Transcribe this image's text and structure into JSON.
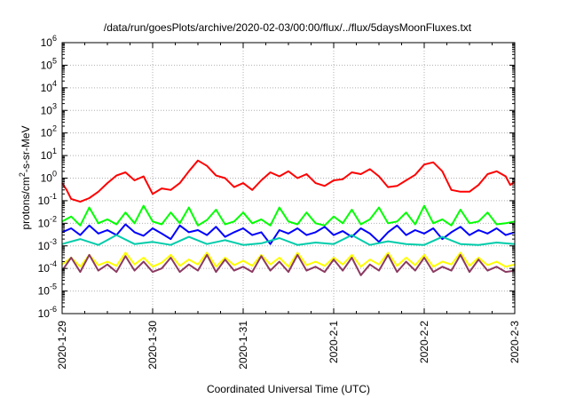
{
  "chart_data": {
    "type": "line",
    "title": "/data/run/goesPlots/archive/2020-02-03/00:00/flux/../flux/5daysMoonFluxes.txt",
    "xlabel": "Coordinated Universal Time (UTC)",
    "ylabel": {
      "prefix": "protons/cm",
      "sup": "2",
      "suffix": "-s-sr-MeV"
    },
    "x_range": [
      "2020-1-29",
      "2020-2-3"
    ],
    "x_ticks": [
      "2020-1-29",
      "2020-1-30",
      "2020-1-31",
      "2020-2-1",
      "2020-2-2",
      "2020-2-3"
    ],
    "y_scale": "log",
    "ylim": [
      1e-06,
      1000000.0
    ],
    "y_ticks": [
      {
        "base": "10",
        "exp": "-6"
      },
      {
        "base": "10",
        "exp": "-5"
      },
      {
        "base": "10",
        "exp": "-4"
      },
      {
        "base": "10",
        "exp": "-3"
      },
      {
        "base": "10",
        "exp": "-2"
      },
      {
        "base": "10",
        "exp": "-1"
      },
      {
        "base": "10",
        "exp": "0"
      },
      {
        "base": "10",
        "exp": "1"
      },
      {
        "base": "10",
        "exp": "2"
      },
      {
        "base": "10",
        "exp": "3"
      },
      {
        "base": "10",
        "exp": "4"
      },
      {
        "base": "10",
        "exp": "5"
      },
      {
        "base": "10",
        "exp": "6"
      }
    ],
    "grid": true,
    "series": [
      {
        "color": "#ff0000",
        "x": [
          0,
          0.05,
          0.1,
          0.2,
          0.3,
          0.4,
          0.5,
          0.6,
          0.7,
          0.8,
          0.9,
          1.0,
          1.1,
          1.2,
          1.3,
          1.4,
          1.5,
          1.6,
          1.7,
          1.8,
          1.9,
          2.0,
          2.1,
          2.2,
          2.3,
          2.4,
          2.5,
          2.6,
          2.7,
          2.8,
          2.9,
          3.0,
          3.1,
          3.2,
          3.3,
          3.4,
          3.5,
          3.6,
          3.7,
          3.8,
          3.9,
          4.0,
          4.1,
          4.2,
          4.3,
          4.4,
          4.5,
          4.6,
          4.7,
          4.8,
          4.9,
          4.95,
          5.0
        ],
        "y": [
          0.6,
          0.3,
          0.12,
          0.09,
          0.13,
          0.25,
          0.6,
          1.3,
          1.8,
          0.8,
          1.2,
          0.2,
          0.35,
          0.3,
          0.6,
          2.0,
          6.0,
          3.5,
          1.3,
          1.0,
          0.4,
          0.6,
          0.3,
          0.8,
          1.8,
          1.2,
          2.0,
          1.0,
          1.5,
          0.6,
          0.45,
          0.8,
          0.9,
          1.8,
          1.5,
          2.5,
          1.2,
          0.4,
          0.45,
          0.8,
          1.4,
          4.0,
          5.0,
          2.0,
          0.3,
          0.25,
          0.25,
          0.5,
          1.5,
          2.0,
          1.2,
          0.5,
          0.7
        ]
      },
      {
        "color": "#00ff00",
        "x": [
          0,
          0.1,
          0.2,
          0.3,
          0.4,
          0.5,
          0.6,
          0.7,
          0.8,
          0.9,
          1.0,
          1.1,
          1.2,
          1.3,
          1.4,
          1.5,
          1.6,
          1.7,
          1.8,
          1.9,
          2.0,
          2.1,
          2.2,
          2.3,
          2.4,
          2.5,
          2.6,
          2.7,
          2.8,
          2.9,
          3.0,
          3.1,
          3.2,
          3.3,
          3.4,
          3.5,
          3.6,
          3.7,
          3.8,
          3.9,
          4.0,
          4.1,
          4.2,
          4.3,
          4.4,
          4.5,
          4.6,
          4.7,
          4.8,
          4.9,
          5.0
        ],
        "y": [
          0.012,
          0.02,
          0.008,
          0.05,
          0.01,
          0.015,
          0.009,
          0.03,
          0.01,
          0.06,
          0.012,
          0.009,
          0.03,
          0.01,
          0.05,
          0.008,
          0.014,
          0.04,
          0.009,
          0.012,
          0.03,
          0.01,
          0.015,
          0.008,
          0.05,
          0.012,
          0.009,
          0.03,
          0.01,
          0.008,
          0.02,
          0.01,
          0.04,
          0.009,
          0.015,
          0.05,
          0.01,
          0.012,
          0.03,
          0.009,
          0.06,
          0.01,
          0.015,
          0.008,
          0.04,
          0.01,
          0.012,
          0.03,
          0.009,
          0.01,
          0.012
        ]
      },
      {
        "color": "#0000ff",
        "x": [
          0,
          0.1,
          0.2,
          0.3,
          0.4,
          0.5,
          0.6,
          0.7,
          0.8,
          0.9,
          1.0,
          1.1,
          1.2,
          1.3,
          1.4,
          1.5,
          1.6,
          1.7,
          1.8,
          1.9,
          2.0,
          2.1,
          2.2,
          2.3,
          2.4,
          2.5,
          2.6,
          2.7,
          2.8,
          2.9,
          3.0,
          3.1,
          3.2,
          3.3,
          3.4,
          3.5,
          3.6,
          3.7,
          3.8,
          3.9,
          4.0,
          4.1,
          4.2,
          4.3,
          4.4,
          4.5,
          4.6,
          4.7,
          4.8,
          4.9,
          5.0
        ],
        "y": [
          0.004,
          0.006,
          0.003,
          0.008,
          0.0035,
          0.005,
          0.003,
          0.009,
          0.004,
          0.0028,
          0.006,
          0.0035,
          0.002,
          0.008,
          0.004,
          0.005,
          0.003,
          0.007,
          0.0025,
          0.004,
          0.006,
          0.003,
          0.004,
          0.0012,
          0.005,
          0.0035,
          0.006,
          0.003,
          0.004,
          0.007,
          0.003,
          0.0045,
          0.0025,
          0.006,
          0.0035,
          0.0015,
          0.004,
          0.008,
          0.003,
          0.005,
          0.0035,
          0.006,
          0.002,
          0.004,
          0.007,
          0.003,
          0.005,
          0.0035,
          0.006,
          0.003,
          0.004
        ]
      },
      {
        "color": "#00ccaa",
        "x": [
          0,
          0.2,
          0.4,
          0.6,
          0.8,
          1.0,
          1.2,
          1.4,
          1.6,
          1.8,
          2.0,
          2.2,
          2.4,
          2.6,
          2.8,
          3.0,
          3.2,
          3.4,
          3.6,
          3.8,
          4.0,
          4.2,
          4.4,
          4.6,
          4.8,
          5.0
        ],
        "y": [
          0.0012,
          0.002,
          0.0011,
          0.003,
          0.0012,
          0.0015,
          0.0011,
          0.0025,
          0.0012,
          0.0018,
          0.0011,
          0.0013,
          0.0022,
          0.0011,
          0.0014,
          0.0012,
          0.003,
          0.0011,
          0.0016,
          0.0012,
          0.0011,
          0.0025,
          0.0012,
          0.0011,
          0.0014,
          0.0012
        ]
      },
      {
        "color": "#ffff00",
        "x": [
          0,
          0.1,
          0.2,
          0.3,
          0.4,
          0.5,
          0.6,
          0.7,
          0.8,
          0.9,
          1.0,
          1.1,
          1.2,
          1.3,
          1.4,
          1.5,
          1.6,
          1.7,
          1.8,
          1.9,
          2.0,
          2.1,
          2.2,
          2.3,
          2.4,
          2.5,
          2.6,
          2.7,
          2.8,
          2.9,
          3.0,
          3.1,
          3.2,
          3.3,
          3.4,
          3.5,
          3.6,
          3.7,
          3.8,
          3.9,
          4.0,
          4.1,
          4.2,
          4.3,
          4.4,
          4.5,
          4.6,
          4.7,
          4.8,
          4.9,
          5.0
        ],
        "y": [
          0.00015,
          0.0003,
          0.00012,
          0.0004,
          0.00014,
          0.0002,
          0.00013,
          0.0005,
          0.00015,
          0.0003,
          0.00012,
          0.00018,
          0.0004,
          0.00013,
          0.00025,
          0.00015,
          0.0005,
          0.00012,
          0.0003,
          0.00014,
          0.00022,
          0.00013,
          0.0004,
          0.00015,
          0.0003,
          0.00012,
          0.0005,
          0.00014,
          0.0002,
          0.00013,
          0.0003,
          0.00015,
          0.0004,
          0.00012,
          0.00025,
          0.00015,
          0.0005,
          0.00013,
          0.0003,
          0.00014,
          0.0004,
          0.00012,
          0.0002,
          0.00015,
          0.0005,
          0.00013,
          0.0003,
          0.00014,
          0.0002,
          0.00012,
          0.00015
        ]
      },
      {
        "color": "#8b3a62",
        "x": [
          0,
          0.1,
          0.2,
          0.3,
          0.4,
          0.5,
          0.6,
          0.7,
          0.8,
          0.9,
          1.0,
          1.1,
          1.2,
          1.3,
          1.4,
          1.5,
          1.6,
          1.7,
          1.8,
          1.9,
          2.0,
          2.1,
          2.2,
          2.3,
          2.4,
          2.5,
          2.6,
          2.7,
          2.8,
          2.9,
          3.0,
          3.1,
          3.2,
          3.3,
          3.4,
          3.5,
          3.6,
          3.7,
          3.8,
          3.9,
          4.0,
          4.1,
          4.2,
          4.3,
          4.4,
          4.5,
          4.6,
          4.7,
          4.8,
          4.9,
          5.0
        ],
        "y": [
          8e-05,
          0.0003,
          7e-05,
          0.0004,
          8e-05,
          0.00015,
          7e-05,
          0.00035,
          8e-05,
          0.0002,
          7e-05,
          0.0001,
          0.0003,
          7e-05,
          0.00015,
          8e-05,
          0.0004,
          7e-05,
          0.00025,
          8e-05,
          0.00012,
          7e-05,
          0.00035,
          8e-05,
          0.0002,
          7e-05,
          0.0004,
          8e-05,
          0.00012,
          7e-05,
          0.00025,
          8e-05,
          0.0003,
          5e-05,
          0.00015,
          8e-05,
          0.0004,
          7e-05,
          0.0002,
          8e-05,
          0.0003,
          7e-05,
          0.00012,
          8e-05,
          0.0004,
          7e-05,
          0.00025,
          8e-05,
          0.00012,
          7e-05,
          8e-05
        ]
      }
    ]
  }
}
